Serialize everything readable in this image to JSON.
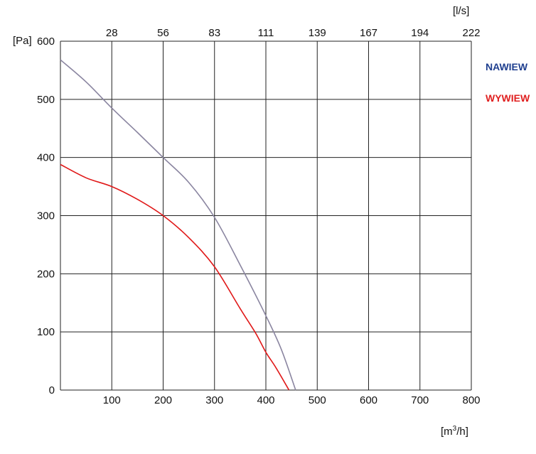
{
  "chart_data": {
    "type": "line",
    "title": "",
    "xlabel": "[m³/h]",
    "xlabel_parts": {
      "pre": "[m",
      "sup": "3",
      "post": "/h]"
    },
    "ylabel": "[Pa]",
    "x2label": "[l/s]",
    "xlim": [
      0,
      800
    ],
    "ylim": [
      0,
      600
    ],
    "x_ticks": [
      0,
      100,
      200,
      300,
      400,
      500,
      600,
      700,
      800
    ],
    "y_ticks": [
      0,
      100,
      200,
      300,
      400,
      500,
      600
    ],
    "x2_tick_labels": [
      "28",
      "56",
      "83",
      "111",
      "139",
      "167",
      "194",
      "222"
    ],
    "grid": true,
    "legend_position": "right",
    "series": [
      {
        "name": "NAWIEW",
        "color": "#8a85a0",
        "label_color": "#1f3f8f",
        "x": [
          0,
          50,
          100,
          150,
          200,
          250,
          300,
          350,
          400,
          430,
          458
        ],
        "y": [
          568,
          530,
          485,
          443,
          400,
          357,
          297,
          215,
          128,
          70,
          0
        ]
      },
      {
        "name": "WYWIEW",
        "color": "#e01818",
        "label_color": "#e02020",
        "x": [
          0,
          50,
          100,
          150,
          200,
          250,
          300,
          350,
          380,
          400,
          420,
          445
        ],
        "y": [
          388,
          365,
          350,
          328,
          300,
          262,
          212,
          140,
          98,
          65,
          38,
          0
        ]
      }
    ]
  }
}
